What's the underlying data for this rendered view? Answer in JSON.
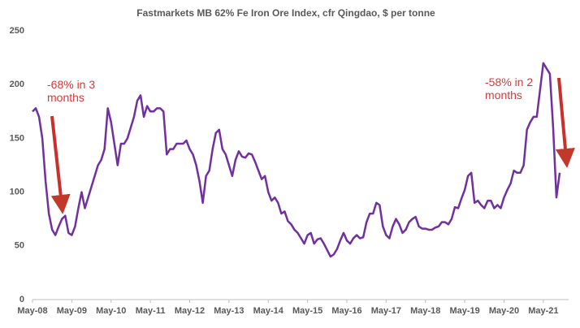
{
  "chart_data": {
    "type": "line",
    "title": "Fastmarkets MB 62% Fe Iron Ore Index, cfr Qingdao, $ per tonne",
    "series": [
      {
        "color": "#7030a0",
        "x": [
          "2008-05",
          "2008-06",
          "2008-07",
          "2008-08",
          "2008-09",
          "2008-10",
          "2008-11",
          "2008-12",
          "2009-01",
          "2009-02",
          "2009-03",
          "2009-04",
          "2009-05",
          "2009-06",
          "2009-07",
          "2009-08",
          "2009-09",
          "2009-10",
          "2009-11",
          "2009-12",
          "2010-01",
          "2010-02",
          "2010-03",
          "2010-04",
          "2010-05",
          "2010-06",
          "2010-07",
          "2010-08",
          "2010-09",
          "2010-10",
          "2010-11",
          "2010-12",
          "2011-01",
          "2011-02",
          "2011-03",
          "2011-04",
          "2011-05",
          "2011-06",
          "2011-07",
          "2011-08",
          "2011-09",
          "2011-10",
          "2011-11",
          "2011-12",
          "2012-01",
          "2012-02",
          "2012-03",
          "2012-04",
          "2012-05",
          "2012-06",
          "2012-07",
          "2012-08",
          "2012-09",
          "2012-10",
          "2012-11",
          "2012-12",
          "2013-01",
          "2013-02",
          "2013-03",
          "2013-04",
          "2013-05",
          "2013-06",
          "2013-07",
          "2013-08",
          "2013-09",
          "2013-10",
          "2013-11",
          "2013-12",
          "2014-01",
          "2014-02",
          "2014-03",
          "2014-04",
          "2014-05",
          "2014-06",
          "2014-07",
          "2014-08",
          "2014-09",
          "2014-10",
          "2014-11",
          "2014-12",
          "2015-01",
          "2015-02",
          "2015-03",
          "2015-04",
          "2015-05",
          "2015-06",
          "2015-07",
          "2015-08",
          "2015-09",
          "2015-10",
          "2015-11",
          "2015-12",
          "2016-01",
          "2016-02",
          "2016-03",
          "2016-04",
          "2016-05",
          "2016-06",
          "2016-07",
          "2016-08",
          "2016-09",
          "2016-10",
          "2016-11",
          "2016-12",
          "2017-01",
          "2017-02",
          "2017-03",
          "2017-04",
          "2017-05",
          "2017-06",
          "2017-07",
          "2017-08",
          "2017-09",
          "2017-10",
          "2017-11",
          "2017-12",
          "2018-01",
          "2018-02",
          "2018-03",
          "2018-04",
          "2018-05",
          "2018-06",
          "2018-07",
          "2018-08",
          "2018-09",
          "2018-10",
          "2018-11",
          "2018-12",
          "2019-01",
          "2019-02",
          "2019-03",
          "2019-04",
          "2019-05",
          "2019-06",
          "2019-07",
          "2019-08",
          "2019-09",
          "2019-10",
          "2019-11",
          "2019-12",
          "2020-01",
          "2020-02",
          "2020-03",
          "2020-04",
          "2020-05",
          "2020-06",
          "2020-07",
          "2020-08",
          "2020-09",
          "2020-10",
          "2020-11",
          "2020-12",
          "2021-01",
          "2021-02",
          "2021-03",
          "2021-04",
          "2021-05",
          "2021-06",
          "2021-07",
          "2021-08",
          "2021-09",
          "2021-10"
        ],
        "values": [
          175,
          178,
          170,
          150,
          110,
          80,
          65,
          60,
          68,
          75,
          78,
          62,
          60,
          68,
          85,
          100,
          85,
          95,
          105,
          115,
          125,
          130,
          140,
          178,
          165,
          145,
          125,
          145,
          145,
          150,
          160,
          170,
          185,
          190,
          170,
          180,
          175,
          175,
          178,
          178,
          175,
          135,
          140,
          140,
          145,
          145,
          145,
          148,
          140,
          135,
          125,
          110,
          90,
          115,
          120,
          140,
          155,
          158,
          140,
          135,
          125,
          115,
          130,
          138,
          133,
          132,
          136,
          135,
          128,
          120,
          112,
          115,
          100,
          92,
          95,
          90,
          80,
          82,
          73,
          70,
          65,
          62,
          57,
          52,
          60,
          62,
          52,
          56,
          57,
          52,
          46,
          40,
          42,
          47,
          55,
          62,
          55,
          52,
          57,
          60,
          57,
          58,
          72,
          80,
          80,
          90,
          88,
          68,
          60,
          57,
          68,
          75,
          70,
          62,
          65,
          72,
          75,
          77,
          68,
          66,
          66,
          65,
          65,
          67,
          68,
          72,
          72,
          70,
          75,
          86,
          85,
          94,
          102,
          115,
          118,
          90,
          92,
          88,
          85,
          92,
          92,
          85,
          88,
          85,
          95,
          102,
          108,
          120,
          118,
          118,
          125,
          158,
          165,
          170,
          170,
          195,
          220,
          215,
          210,
          160,
          95,
          118
        ]
      }
    ],
    "xlim": [
      "2008-05",
      "2021-10"
    ],
    "xticks": [
      {
        "value": "2008-05",
        "label": "May-08"
      },
      {
        "value": "2009-05",
        "label": "May-09"
      },
      {
        "value": "2010-05",
        "label": "May-10"
      },
      {
        "value": "2011-05",
        "label": "May-11"
      },
      {
        "value": "2012-05",
        "label": "May-12"
      },
      {
        "value": "2013-05",
        "label": "May-13"
      },
      {
        "value": "2014-05",
        "label": "May-14"
      },
      {
        "value": "2015-05",
        "label": "May-15"
      },
      {
        "value": "2016-05",
        "label": "May-16"
      },
      {
        "value": "2017-05",
        "label": "May-17"
      },
      {
        "value": "2018-05",
        "label": "May-18"
      },
      {
        "value": "2019-05",
        "label": "May-19"
      },
      {
        "value": "2020-05",
        "label": "May-20"
      },
      {
        "value": "2021-05",
        "label": "May-21"
      }
    ],
    "ylim": [
      0,
      250
    ],
    "yticks": [
      0,
      50,
      100,
      150,
      200,
      250
    ],
    "annotations": [
      {
        "text": "-68% in 3 months"
      },
      {
        "text": "-58% in 2 months"
      }
    ]
  }
}
